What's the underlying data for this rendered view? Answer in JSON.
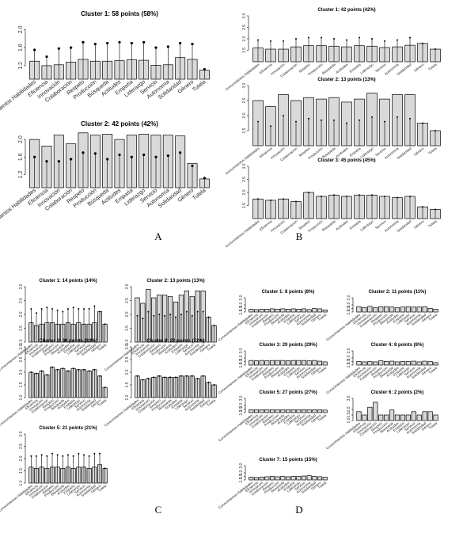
{
  "categories": [
    "Conocimientos Habilidades",
    "Eficiencia",
    "Innovación",
    "Colaboración",
    "Respeto",
    "Producción",
    "Búsqueda",
    "Actitudes",
    "Empatía",
    "Liderazgo",
    "Servicio",
    "Autonomía",
    "Solidaridad",
    "Género",
    "Tutela"
  ],
  "panel_letters": [
    "A",
    "B",
    "C",
    "D"
  ],
  "chart_data": [
    {
      "type": "bar",
      "panel": "A",
      "title": "Cluster 1: 58 points (58%)",
      "yticks": [
        "1.2",
        "1.6",
        "2.0"
      ],
      "ylim": [
        0.9,
        2.2
      ],
      "values": [
        1.3,
        1.2,
        1.22,
        1.28,
        1.34,
        1.3,
        1.3,
        1.31,
        1.33,
        1.32,
        1.21,
        1.22,
        1.38,
        1.34,
        1.1
      ],
      "errors": [
        1.55,
        1.4,
        1.58,
        1.6,
        1.72,
        1.68,
        1.7,
        1.72,
        1.7,
        1.72,
        1.6,
        1.62,
        1.7,
        1.68,
        1.12
      ]
    },
    {
      "type": "bar",
      "panel": "A",
      "title": "Cluster 2: 42 points (42%)",
      "yticks": [
        "1.2",
        "1.6",
        "2.0"
      ],
      "ylim": [
        0.9,
        2.2
      ],
      "values": [
        2.0,
        1.85,
        2.1,
        1.9,
        2.15,
        2.1,
        2.12,
        2.0,
        2.1,
        2.12,
        2.1,
        2.1,
        2.08,
        1.45,
        1.1
      ],
      "errors": [
        1.6,
        1.5,
        1.5,
        1.55,
        1.7,
        1.68,
        1.55,
        1.65,
        1.6,
        1.65,
        1.6,
        1.63,
        1.7,
        1.4,
        1.12
      ]
    },
    {
      "type": "bar",
      "panel": "B",
      "title": "Cluster 1: 42 points (42%)",
      "yticks": [
        "1.5",
        "2.0",
        "2.5",
        "3.0"
      ],
      "ylim": [
        1.0,
        3.0
      ],
      "values": [
        1.6,
        1.55,
        1.55,
        1.65,
        1.7,
        1.7,
        1.68,
        1.65,
        1.7,
        1.68,
        1.62,
        1.65,
        1.72,
        1.8,
        1.55
      ],
      "errors": [
        1.95,
        1.9,
        1.9,
        2.0,
        2.05,
        2.05,
        2.0,
        1.95,
        2.05,
        2.0,
        1.9,
        1.95,
        2.05,
        1.8,
        1.55
      ]
    },
    {
      "type": "bar",
      "panel": "B",
      "title": "Cluster 2: 13 points (13%)",
      "yticks": [
        "1.5",
        "2.0",
        "2.5",
        "3.0"
      ],
      "ylim": [
        1.0,
        3.0
      ],
      "values": [
        2.5,
        2.3,
        2.7,
        2.5,
        2.6,
        2.55,
        2.6,
        2.45,
        2.55,
        2.75,
        2.55,
        2.7,
        2.7,
        1.75,
        1.5
      ],
      "errors": [
        1.8,
        1.65,
        2.0,
        1.8,
        1.9,
        1.85,
        1.85,
        1.75,
        1.85,
        1.95,
        1.8,
        1.95,
        1.9,
        1.75,
        1.5
      ]
    },
    {
      "type": "bar",
      "panel": "B",
      "title": "Cluster 3: 45 points (45%)",
      "yticks": [
        "1.5",
        "2.0",
        "2.5",
        "3.0"
      ],
      "ylim": [
        1.0,
        3.0
      ],
      "values": [
        1.75,
        1.7,
        1.75,
        1.65,
        2.0,
        1.85,
        1.9,
        1.85,
        1.9,
        1.9,
        1.85,
        1.8,
        1.85,
        1.45,
        1.35
      ],
      "errors": [
        1.75,
        1.7,
        1.75,
        1.65,
        2.0,
        1.85,
        1.9,
        1.85,
        1.9,
        1.9,
        1.85,
        1.8,
        1.85,
        1.45,
        1.35
      ]
    },
    {
      "type": "bar",
      "panel": "C",
      "title": "Cluster 1: 14 points (14%)",
      "yticks": [
        "1.0",
        "1.5",
        "2.0",
        "2.5",
        "3.0"
      ],
      "ylim": [
        1.0,
        3.0
      ],
      "values": [
        1.7,
        1.6,
        1.65,
        1.7,
        1.7,
        1.65,
        1.65,
        1.7,
        1.65,
        1.7,
        1.65,
        1.65,
        1.7,
        2.1,
        1.65
      ],
      "errors": [
        2.2,
        2.05,
        2.2,
        2.25,
        2.2,
        2.15,
        2.1,
        2.2,
        2.25,
        2.2,
        2.2,
        2.2,
        2.3,
        2.1,
        1.65
      ]
    },
    {
      "type": "bar",
      "panel": "C",
      "title": "Cluster 2: 13 points (13%)",
      "yticks": [
        "1.0",
        "1.5",
        "2.0",
        "2.5",
        "3.0"
      ],
      "ylim": [
        1.0,
        3.0
      ],
      "values": [
        2.6,
        2.4,
        2.9,
        2.6,
        2.7,
        2.7,
        2.65,
        2.45,
        2.7,
        2.85,
        2.65,
        2.85,
        2.85,
        1.9,
        1.6
      ],
      "errors": [
        1.95,
        1.85,
        2.1,
        1.95,
        2.0,
        1.95,
        2.0,
        1.9,
        2.0,
        2.1,
        1.95,
        2.1,
        2.1,
        1.9,
        1.6
      ]
    },
    {
      "type": "bar",
      "panel": "C",
      "title": "Cluster 3: 30 points (30%)",
      "yticks": [
        "1.0",
        "1.5",
        "2.0",
        "2.5",
        "3.0"
      ],
      "ylim": [
        1.0,
        3.0
      ],
      "values": [
        2.0,
        1.95,
        2.05,
        1.9,
        2.2,
        2.1,
        2.15,
        2.05,
        2.15,
        2.1,
        2.1,
        2.05,
        2.1,
        1.85,
        1.4
      ],
      "errors": [
        2.0,
        1.95,
        2.05,
        1.9,
        2.2,
        2.1,
        2.15,
        2.05,
        2.15,
        2.1,
        2.1,
        2.05,
        2.1,
        1.85,
        1.4
      ]
    },
    {
      "type": "bar",
      "panel": "C",
      "title": "Cluster 4: 22 points (22%)",
      "yticks": [
        "1.0",
        "1.5",
        "2.0",
        "2.5",
        "3.0"
      ],
      "ylim": [
        1.0,
        3.0
      ],
      "values": [
        1.85,
        1.7,
        1.75,
        1.8,
        1.85,
        1.8,
        1.8,
        1.8,
        1.85,
        1.85,
        1.85,
        1.75,
        1.85,
        1.6,
        1.5
      ],
      "errors": [
        1.85,
        1.7,
        1.75,
        1.8,
        1.85,
        1.8,
        1.8,
        1.8,
        1.85,
        1.85,
        1.85,
        1.75,
        1.85,
        1.6,
        1.5
      ]
    },
    {
      "type": "bar",
      "panel": "C",
      "title": "Cluster 5: 21 points (21%)",
      "yticks": [
        "1.0",
        "1.5",
        "2.0",
        "2.5",
        "3.0"
      ],
      "ylim": [
        1.0,
        3.0
      ],
      "values": [
        1.65,
        1.6,
        1.65,
        1.6,
        1.65,
        1.65,
        1.6,
        1.65,
        1.6,
        1.65,
        1.65,
        1.6,
        1.65,
        1.75,
        1.6
      ],
      "errors": [
        2.1,
        2.1,
        2.15,
        2.1,
        2.2,
        2.15,
        2.1,
        2.15,
        2.1,
        2.2,
        2.15,
        2.1,
        2.2,
        2.2,
        1.6
      ]
    },
    {
      "type": "bar",
      "panel": "D",
      "title": "Cluster 1: 8 points (8%)",
      "yticks": [
        "1.0",
        "1.5",
        "2.0",
        "3.0"
      ],
      "ylim": [
        1.0,
        3.0
      ],
      "values": [
        1.4,
        1.35,
        1.4,
        1.4,
        1.45,
        1.4,
        1.45,
        1.4,
        1.45,
        1.4,
        1.45,
        1.35,
        1.5,
        1.45,
        1.3
      ]
    },
    {
      "type": "bar",
      "panel": "D",
      "title": "Cluster 2: 11 points (11%)",
      "yticks": [
        "1.0",
        "1.5",
        "2.0",
        "3.0"
      ],
      "ylim": [
        1.0,
        3.0
      ],
      "values": [
        1.75,
        1.6,
        1.8,
        1.6,
        1.75,
        1.75,
        1.7,
        1.6,
        1.7,
        1.75,
        1.7,
        1.7,
        1.75,
        1.5,
        1.4
      ]
    },
    {
      "type": "bar",
      "panel": "D",
      "title": "Cluster 3: 29 points (29%)",
      "yticks": [
        "1.0",
        "1.5",
        "2.0",
        "3.0"
      ],
      "ylim": [
        1.0,
        3.0
      ],
      "values": [
        1.65,
        1.6,
        1.65,
        1.6,
        1.65,
        1.65,
        1.65,
        1.6,
        1.65,
        1.65,
        1.65,
        1.6,
        1.65,
        1.55,
        1.45
      ]
    },
    {
      "type": "bar",
      "panel": "D",
      "title": "Cluster 4: 8 points (8%)",
      "yticks": [
        "1.0",
        "1.5",
        "2.0",
        "3.0"
      ],
      "ylim": [
        1.0,
        3.0
      ],
      "values": [
        1.5,
        1.45,
        1.5,
        1.45,
        1.6,
        1.5,
        1.55,
        1.45,
        1.5,
        1.5,
        1.55,
        1.45,
        1.55,
        1.5,
        1.35
      ]
    },
    {
      "type": "bar",
      "panel": "D",
      "title": "Cluster 5: 27 points (27%)",
      "yticks": [
        "1.0",
        "1.5",
        "2.0",
        "3.0"
      ],
      "ylim": [
        1.0,
        3.0
      ],
      "values": [
        1.4,
        1.4,
        1.4,
        1.4,
        1.4,
        1.4,
        1.4,
        1.4,
        1.4,
        1.4,
        1.4,
        1.4,
        1.4,
        1.4,
        1.35
      ]
    },
    {
      "type": "bar",
      "panel": "D",
      "title": "Cluster 6: 2 points (2%)",
      "yticks": [
        "1.0",
        "1.5",
        "2.0",
        "3.0"
      ],
      "ylim": [
        1.0,
        3.0
      ],
      "values": [
        1.8,
        1.5,
        2.2,
        2.65,
        1.5,
        1.5,
        1.95,
        1.5,
        1.5,
        1.5,
        1.8,
        1.5,
        1.8,
        1.8,
        1.5
      ]
    },
    {
      "type": "bar",
      "panel": "D",
      "title": "Cluster 7: 15 points (15%)",
      "yticks": [
        "1.0",
        "1.5",
        "2.0",
        "3.0"
      ],
      "ylim": [
        1.0,
        3.0
      ],
      "values": [
        1.4,
        1.35,
        1.4,
        1.45,
        1.5,
        1.45,
        1.5,
        1.45,
        1.5,
        1.5,
        1.55,
        1.6,
        1.5,
        1.45,
        1.4
      ]
    }
  ]
}
